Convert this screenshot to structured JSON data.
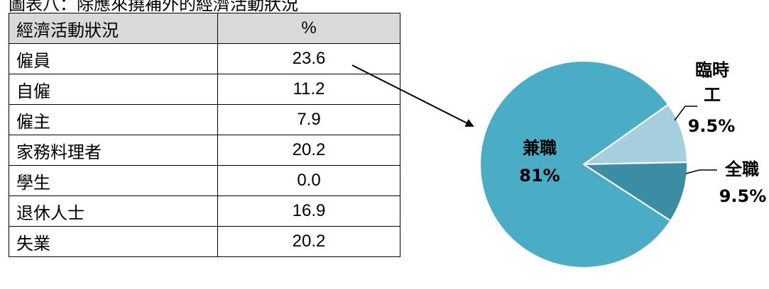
{
  "caption": "圖表八：除應來撓補外的經濟活動狀況",
  "table": {
    "header": [
      "經濟活動狀況",
      "%"
    ],
    "rows": [
      [
        "僱員",
        "23.6"
      ],
      [
        "自僱",
        "11.2"
      ],
      [
        "僱主",
        "7.9"
      ],
      [
        "家務料理者",
        "20.2"
      ],
      [
        "學生",
        "0.0"
      ],
      [
        "退休人士",
        "16.9"
      ],
      [
        "失業",
        "20.2"
      ]
    ]
  },
  "chart_data": {
    "type": "pie",
    "labels": [
      "兼職",
      "臨時工",
      "全職"
    ],
    "values": [
      81,
      9.5,
      9.5
    ],
    "value_labels": [
      "81%",
      "9.5%",
      "9.5%"
    ],
    "colors": [
      "#4bacc6",
      "#a5cfdd",
      "#3b8da3"
    ],
    "title": ""
  }
}
